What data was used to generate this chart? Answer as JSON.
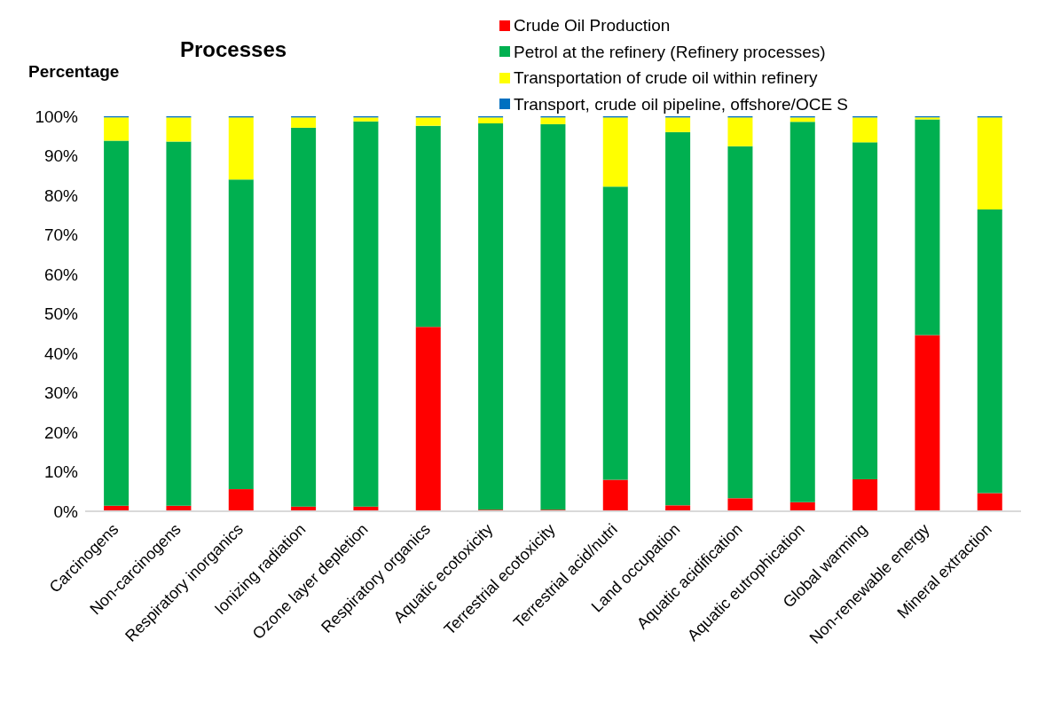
{
  "chart_data": {
    "type": "bar",
    "title": "Processes",
    "ylabel": "Percentage",
    "stacked": true,
    "legend": "top",
    "grid": false,
    "categories": [
      "Carcinogens",
      "Non-carcinogens",
      "Respiratory inorganics",
      "Ionizing radiation",
      "Ozone layer depletion",
      "Respiratory organics",
      "Aquatic ecotoxicity",
      "Terrestrial ecotoxicity",
      "Terrestrial acid/nutri",
      "Land occupation",
      "Aquatic acidification",
      "Aquatic eutrophication",
      "Global warming",
      "Non-renewable energy",
      "Mineral extraction"
    ],
    "series": [
      {
        "name": "Crude Oil Production",
        "color": "#ff0000",
        "values": [
          1.4,
          1.4,
          5.6,
          1.2,
          1.2,
          46.7,
          0.4,
          0.4,
          8,
          1.5,
          3.3,
          2.3,
          8.1,
          44.6,
          4.6
        ]
      },
      {
        "name": "Petrol at the refinery (Refinery processes)",
        "color": "#00b050",
        "values": [
          92.4,
          92.2,
          78.4,
          95.9,
          97.5,
          50.9,
          97.8,
          97.6,
          74.2,
          94.5,
          89.1,
          96.3,
          85.3,
          54.6,
          71.8
        ]
      },
      {
        "name": "Transportation of crude oil within refinery",
        "color": "#ffff00",
        "values": [
          5.9,
          6.1,
          15.7,
          2.6,
          1,
          2.1,
          1.5,
          1.7,
          17.5,
          3.7,
          7.3,
          1.1,
          6.3,
          0.5,
          23.3
        ]
      },
      {
        "name": "Transport, crude oil pipeline, offshore/OCE S",
        "color": "#0070c0",
        "values": [
          0.3,
          0.3,
          0.3,
          0.3,
          0.3,
          0.3,
          0.3,
          0.3,
          0.3,
          0.3,
          0.3,
          0.3,
          0.3,
          0.3,
          0.3
        ]
      }
    ],
    "ylim": [
      0,
      100
    ],
    "yticks": [
      {
        "value": 0,
        "label": "0%"
      },
      {
        "value": 10,
        "label": "10%"
      },
      {
        "value": 20,
        "label": "20%"
      },
      {
        "value": 30,
        "label": "30%"
      },
      {
        "value": 40,
        "label": "40%"
      },
      {
        "value": 50,
        "label": "50%"
      },
      {
        "value": 60,
        "label": "60%"
      },
      {
        "value": 70,
        "label": "70%"
      },
      {
        "value": 80,
        "label": "80%"
      },
      {
        "value": 90,
        "label": "90%"
      },
      {
        "value": 100,
        "label": "100%"
      }
    ]
  }
}
